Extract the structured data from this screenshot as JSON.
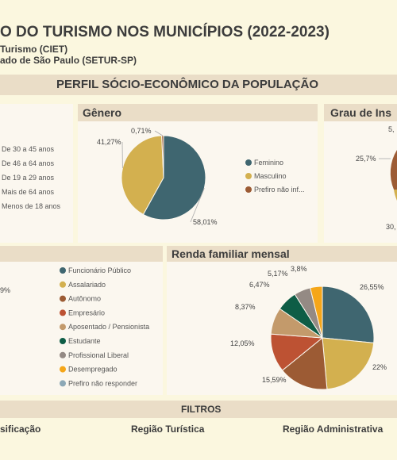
{
  "header": {
    "title": "O DO TURISMO NOS MUNICÍPIOS (2022-2023)",
    "line1": "Turismo (CIET)",
    "line2": "ado de São Paulo (SETUR-SP)"
  },
  "section_title": "PERFIL SÓCIO-ECONÔMICO DA POPULAÇÃO",
  "age_legend": [
    "De 30 a 45 anos",
    "De 46 a 64 anos",
    "De 19 a 29 anos",
    "Mais de 64 anos",
    "Menos de 18 anos"
  ],
  "occupation_left_label": "9%",
  "education_title": "Grau de Ins",
  "education_labels": [
    "5,",
    "25,7%",
    "30,"
  ],
  "filters": {
    "title": "FILTROS",
    "items": [
      "sificação",
      "Região Turística",
      "Região Administrativa"
    ]
  },
  "colors": {
    "teal": "#3f6670",
    "gold": "#d3b04f",
    "rust": "#9c5b34",
    "red": "#bd5233",
    "tan": "#c39a6b",
    "green": "#0e5d46",
    "gray": "#948a84",
    "orange": "#f5a619",
    "lightblue": "#8ca8b6"
  },
  "chart_data": [
    {
      "type": "pie",
      "title": "Gênero",
      "categories": [
        "Feminino",
        "Masculino",
        "Prefiro não inf..."
      ],
      "values": [
        58.01,
        41.27,
        0.71
      ],
      "labels": [
        "58,01%",
        "41,27%",
        "0,71%"
      ],
      "colors": [
        "#3f6670",
        "#d3b04f",
        "#9c5b34"
      ]
    },
    {
      "type": "pie",
      "title": "Renda familiar mensal",
      "values": [
        26.55,
        22,
        15.59,
        12.05,
        8.37,
        6.47,
        5.17,
        3.8
      ],
      "labels": [
        "26,55%",
        "22%",
        "15,59%",
        "12,05%",
        "8,37%",
        "6,47%",
        "5,17%",
        "3,8%"
      ],
      "colors": [
        "#3f6670",
        "#d3b04f",
        "#9c5b34",
        "#bd5233",
        "#c39a6b",
        "#0e5d46",
        "#948a84",
        "#f5a619"
      ],
      "legend": [
        "Funcionário Público",
        "Assalariado",
        "Autônomo",
        "Empresário",
        "Aposentado / Pensionista",
        "Estudante",
        "Profissional Liberal",
        "Desempregado",
        "Prefiro não responder"
      ],
      "legend_colors": [
        "#3f6670",
        "#d3b04f",
        "#9c5b34",
        "#bd5233",
        "#c39a6b",
        "#0e5d46",
        "#948a84",
        "#f5a619",
        "#8ca8b6"
      ]
    }
  ]
}
